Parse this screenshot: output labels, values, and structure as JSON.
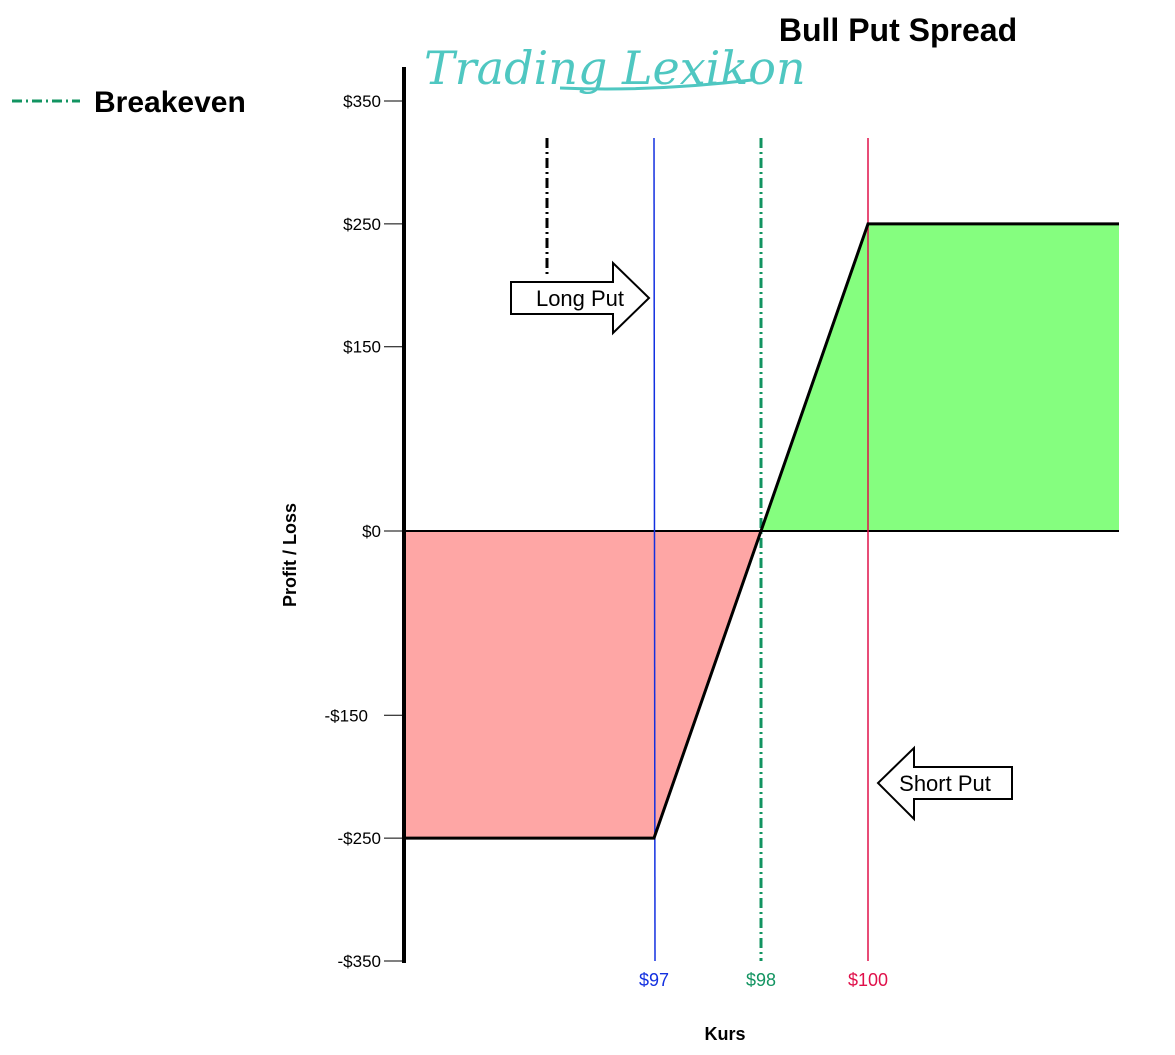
{
  "brand": {
    "logo_text": "Trading Lexikon"
  },
  "legend": {
    "breakeven_label": "Breakeven"
  },
  "colors": {
    "profit_fill": "#85fe7f",
    "loss_fill": "#fea6a5",
    "long_put_line": "#1330e0",
    "breakeven_line": "#129461",
    "short_put_line": "#e0104a",
    "payoff_line": "#000000",
    "brand": "#4fc7c1"
  },
  "chart_data": {
    "type": "line",
    "title": "Bull Put Spread",
    "xlabel": "Kurs",
    "ylabel": "Profit / Loss",
    "ylim": [
      -350,
      350
    ],
    "y_ticks": [
      {
        "value": 350,
        "label": "$350"
      },
      {
        "value": 250,
        "label": "$250"
      },
      {
        "value": 150,
        "label": "$150"
      },
      {
        "value": 0,
        "label": "$0"
      },
      {
        "value": -150,
        "label": "-$150"
      },
      {
        "value": -250,
        "label": "-$250"
      },
      {
        "value": -350,
        "label": "-$350"
      }
    ],
    "series": [
      {
        "x": [
          94.7,
          97,
          98,
          100,
          102.3
        ],
        "y": [
          -250,
          -250,
          0,
          250,
          250
        ]
      }
    ],
    "reference_lines": [
      {
        "x": 97,
        "label": "$97",
        "role": "long_put"
      },
      {
        "x": 98,
        "label": "$98",
        "role": "breakeven"
      },
      {
        "x": 100,
        "label": "$100",
        "role": "short_put"
      }
    ],
    "annotations": [
      {
        "text": "Long Put",
        "points_to": "long_put"
      },
      {
        "text": "Short Put",
        "points_to": "short_put"
      }
    ]
  }
}
